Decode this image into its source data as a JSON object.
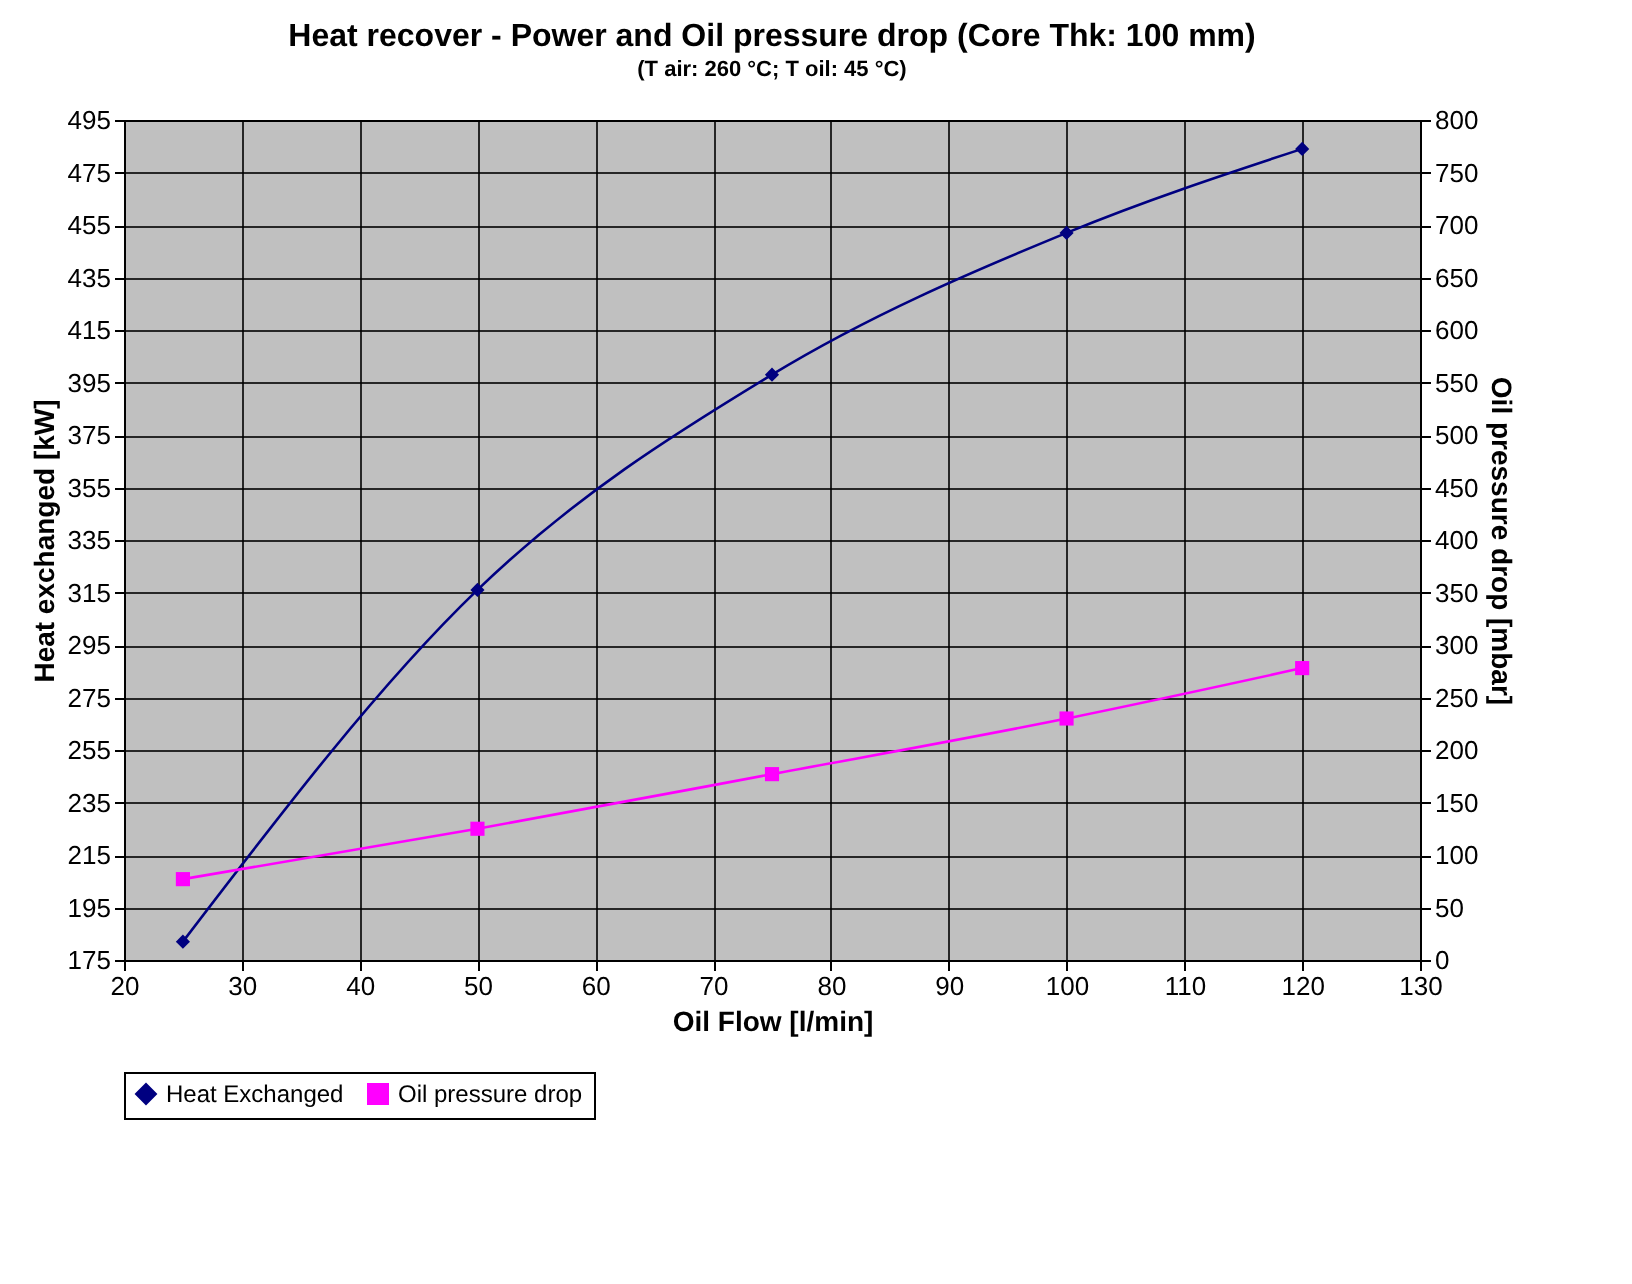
{
  "chart_data": {
    "type": "line",
    "title": "Heat recover - Power and Oil pressure drop (Core Thk: 100 mm)",
    "subtitle": "(T air: 260 °C; T oil: 45 °C)",
    "xlabel": "Oil Flow [l/min]",
    "ylabel": "Heat exchanged [kW]",
    "y2label": "Oil pressure drop [mbar]",
    "x": [
      25,
      50,
      75,
      100,
      120
    ],
    "series": [
      {
        "name": "Heat Exchanged",
        "color": "#000080",
        "marker": "diamond",
        "values": [
          182,
          316,
          398,
          452,
          484
        ]
      },
      {
        "name": "Oil pressure drop",
        "color": "#ff00ff",
        "marker": "square",
        "axis": "y2",
        "values": [
          77,
          125,
          177,
          230,
          278
        ]
      }
    ],
    "xlim": [
      20,
      130
    ],
    "xticks": [
      20,
      30,
      40,
      50,
      60,
      70,
      80,
      90,
      100,
      110,
      120,
      130
    ],
    "ylim": [
      175,
      495
    ],
    "yticks": [
      175,
      195,
      215,
      235,
      255,
      275,
      295,
      315,
      335,
      355,
      375,
      395,
      415,
      435,
      455,
      475,
      495
    ],
    "y2lim": [
      0,
      800
    ],
    "y2ticks": [
      0,
      50,
      100,
      150,
      200,
      250,
      300,
      350,
      400,
      450,
      500,
      550,
      600,
      650,
      700,
      750,
      800
    ],
    "grid": true,
    "legend": "bottom"
  }
}
